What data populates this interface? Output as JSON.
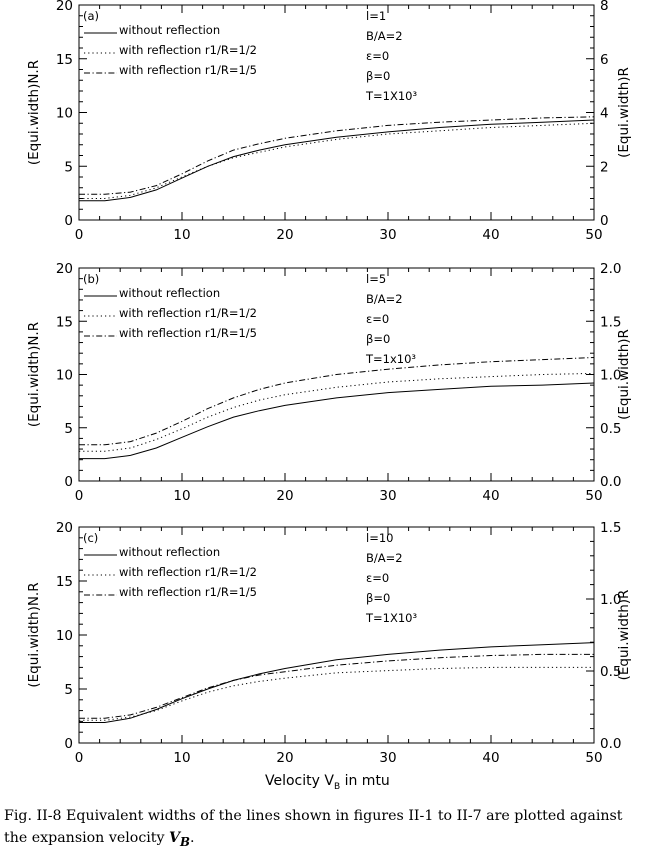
{
  "figure": {
    "caption_prefix": "Fig.  II-8 Equivalent widths of the lines shown in figures II-1 to II-7 are plotted against the expansion velocity ",
    "caption_symbol": "V",
    "caption_subscript": "B",
    "caption_suffix": "."
  },
  "chart_data": [
    {
      "type": "line",
      "panel_label": "(a)",
      "ylabel": "(Equi.width)N.R",
      "y2label": "(Equi.width)R",
      "xlim": [
        0,
        50
      ],
      "ylim": [
        0,
        20
      ],
      "y2lim": [
        0,
        8
      ],
      "xticks": [
        "0",
        "10",
        "20",
        "30",
        "40",
        "50"
      ],
      "yticks": [
        "0",
        "5",
        "10",
        "15",
        "20"
      ],
      "y2ticks": [
        "0",
        "2",
        "4",
        "6",
        "8"
      ],
      "params": [
        "l=1",
        "B/A=2",
        "ε=0",
        "β=0",
        "T=1X10³"
      ],
      "legend": [
        "without reflection",
        "with reflection r1/R=1/2",
        "with reflection r1/R=1/5"
      ],
      "x": [
        0,
        2.5,
        5,
        7.5,
        10,
        12.5,
        15,
        17.5,
        20,
        25,
        30,
        35,
        40,
        45,
        50
      ],
      "series": [
        {
          "style": "solid",
          "values": [
            1.8,
            1.8,
            2.1,
            2.8,
            3.9,
            5.0,
            5.9,
            6.5,
            7.0,
            7.7,
            8.2,
            8.6,
            8.9,
            9.1,
            9.3
          ]
        },
        {
          "style": "dotted",
          "values": [
            2.0,
            2.0,
            2.3,
            3.0,
            4.0,
            5.0,
            5.8,
            6.3,
            6.8,
            7.5,
            8.0,
            8.3,
            8.6,
            8.8,
            9.0
          ]
        },
        {
          "style": "dashdot",
          "values": [
            2.4,
            2.4,
            2.6,
            3.2,
            4.3,
            5.5,
            6.5,
            7.1,
            7.6,
            8.3,
            8.8,
            9.1,
            9.3,
            9.5,
            9.6
          ]
        }
      ]
    },
    {
      "type": "line",
      "panel_label": "(b)",
      "ylabel": "(Equi.width)N.R",
      "y2label": "(Equi.width)R",
      "xlim": [
        0,
        50
      ],
      "ylim": [
        0,
        20
      ],
      "y2lim": [
        0,
        2.0
      ],
      "xticks": [
        "0",
        "10",
        "20",
        "30",
        "40",
        "50"
      ],
      "yticks": [
        "0",
        "5",
        "10",
        "15",
        "20"
      ],
      "y2ticks": [
        "0.0",
        "0.5",
        "1.0",
        "1.5",
        "2.0"
      ],
      "params": [
        "l=5",
        "B/A=2",
        "ε=0",
        "β=0",
        "T=1x10³"
      ],
      "legend": [
        "without reflection",
        "with reflection r1/R=1/2",
        "with reflection r1/R=1/5"
      ],
      "x": [
        0,
        2.5,
        5,
        7.5,
        10,
        12.5,
        15,
        17.5,
        20,
        25,
        30,
        35,
        40,
        45,
        50
      ],
      "series": [
        {
          "style": "solid",
          "values": [
            2.1,
            2.1,
            2.4,
            3.1,
            4.1,
            5.1,
            6.0,
            6.6,
            7.1,
            7.8,
            8.3,
            8.6,
            8.9,
            9.0,
            9.2
          ]
        },
        {
          "style": "dotted",
          "values": [
            2.8,
            2.8,
            3.1,
            3.9,
            4.9,
            6.0,
            6.9,
            7.6,
            8.1,
            8.8,
            9.3,
            9.6,
            9.8,
            10.0,
            10.1
          ]
        },
        {
          "style": "dashdot",
          "values": [
            3.4,
            3.4,
            3.7,
            4.5,
            5.6,
            6.8,
            7.8,
            8.6,
            9.2,
            10.0,
            10.5,
            10.9,
            11.2,
            11.4,
            11.6
          ]
        }
      ]
    },
    {
      "type": "line",
      "panel_label": "(c)",
      "ylabel": "(Equi.width)N.R",
      "y2label": "(Equi.width)R",
      "xlim": [
        0,
        50
      ],
      "ylim": [
        0,
        20
      ],
      "y2lim": [
        0,
        1.5
      ],
      "xticks": [
        "0",
        "10",
        "20",
        "30",
        "40",
        "50"
      ],
      "yticks": [
        "0",
        "5",
        "10",
        "15",
        "20"
      ],
      "y2ticks": [
        "0.0",
        "0.5",
        "1.0",
        "1.5"
      ],
      "params": [
        "l=10",
        "B/A=2",
        "ε=0",
        "β=0",
        "T=1X10³"
      ],
      "legend": [
        "without reflection",
        "with reflection r1/R=1/2",
        "with reflection r1/R=1/5"
      ],
      "xlabel_main": "Velocity V",
      "xlabel_sub": "B",
      "xlabel_tail": " in mtu",
      "x": [
        0,
        2.5,
        5,
        7.5,
        10,
        12.5,
        15,
        17.5,
        20,
        25,
        30,
        35,
        40,
        45,
        50
      ],
      "series": [
        {
          "style": "solid",
          "values": [
            1.9,
            1.9,
            2.3,
            3.1,
            4.1,
            5.0,
            5.8,
            6.4,
            6.9,
            7.7,
            8.2,
            8.6,
            8.9,
            9.1,
            9.3
          ]
        },
        {
          "style": "dotted",
          "values": [
            2.1,
            2.1,
            2.4,
            3.0,
            3.9,
            4.7,
            5.3,
            5.7,
            6.0,
            6.5,
            6.7,
            6.9,
            7.0,
            7.0,
            7.0
          ]
        },
        {
          "style": "dashdot",
          "values": [
            2.3,
            2.3,
            2.6,
            3.3,
            4.2,
            5.1,
            5.8,
            6.3,
            6.6,
            7.2,
            7.6,
            7.9,
            8.1,
            8.2,
            8.2
          ]
        }
      ]
    }
  ]
}
